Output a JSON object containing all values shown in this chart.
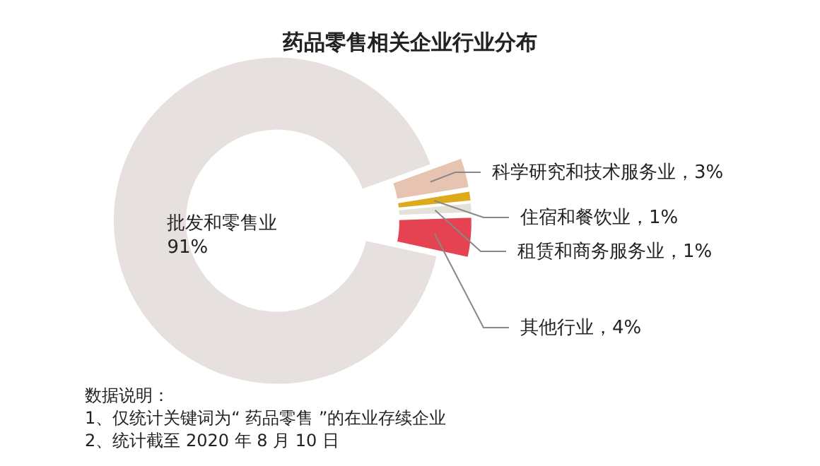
{
  "chart_data": {
    "type": "donut",
    "title": "药品零售相关企业行业分布",
    "categories": [
      "批发和零售业",
      "科学研究和技术服务业",
      "住宿和餐饮业",
      "租赁和商务服务业",
      "其他行业"
    ],
    "values": [
      91,
      3,
      1,
      1,
      4
    ],
    "value_labels": [
      "91%",
      "，3%",
      "，1%",
      "，1%",
      "，4%"
    ],
    "colors": [
      "#e6e0de",
      "#e7c3b1",
      "#dcaa1c",
      "#e3e1d8",
      "#e54352"
    ],
    "annotations": [
      "数据说明：",
      "1、仅统计关键词为“ 药品零售 ”的在业存续企业",
      "2、统计截至 2020 年 8 月 10 日"
    ]
  }
}
